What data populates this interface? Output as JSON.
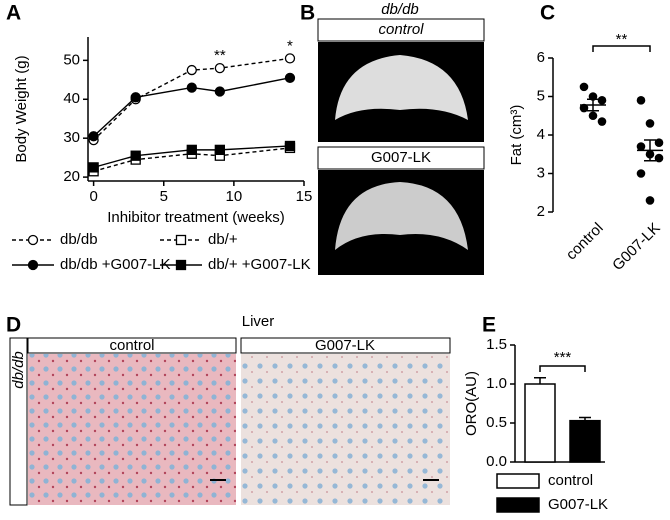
{
  "chart_data": [
    {
      "type": "line",
      "label": "A",
      "xlabel": "Inhibitor treatment (weeks)",
      "ylabel": "Body Weight (g)",
      "x": [
        0,
        3,
        7,
        9,
        14
      ],
      "xlim": [
        -0.4,
        15
      ],
      "xticks": [
        0,
        5,
        10,
        15
      ],
      "ylim": [
        19,
        56
      ],
      "yticks": [
        20,
        30,
        40,
        50
      ],
      "series": [
        {
          "name": "db/db",
          "color": "#000000",
          "dashed": true,
          "marker": "circle",
          "filled": false,
          "values": [
            29.5,
            40,
            47.5,
            48,
            50.5
          ]
        },
        {
          "name": "db/+",
          "color": "#000000",
          "dashed": true,
          "marker": "square",
          "filled": false,
          "values": [
            21.5,
            24.5,
            26,
            25.5,
            27.5
          ]
        },
        {
          "name": "db/db +G007-LK",
          "color": "#000000",
          "dashed": false,
          "marker": "circle",
          "filled": true,
          "values": [
            30.5,
            40.5,
            43,
            42,
            45.5
          ]
        },
        {
          "name": "db/+ +G007-LK",
          "color": "#000000",
          "dashed": false,
          "marker": "square",
          "filled": true,
          "values": [
            22.5,
            25.5,
            27,
            27,
            28
          ]
        }
      ],
      "annotations": [
        {
          "text": "**",
          "x": 9
        },
        {
          "text": "*",
          "x": 14
        }
      ]
    },
    {
      "type": "dotplot",
      "label": "C",
      "ylabel": "Fat (cm³)",
      "categories": [
        "control",
        "G007-LK"
      ],
      "values": [
        [
          5.25,
          5.0,
          4.9,
          4.7,
          4.5,
          4.35
        ],
        [
          4.9,
          4.3,
          3.8,
          3.7,
          3.5,
          3.4,
          3.0,
          2.3
        ]
      ],
      "mean": [
        4.78,
        3.6
      ],
      "sem": [
        0.15,
        0.27
      ],
      "ylim": [
        2,
        6
      ],
      "yticks": [
        2,
        3,
        4,
        5,
        6
      ],
      "significance": "**"
    },
    {
      "type": "bar",
      "label": "E",
      "ylabel": "ORO(AU)",
      "categories": [
        "control",
        "G007-LK"
      ],
      "values": [
        1.0,
        0.53
      ],
      "errors": [
        0.08,
        0.04
      ],
      "colors": [
        "#ffffff",
        "#000000"
      ],
      "ylim": [
        0,
        1.5
      ],
      "yticks": [
        {
          "value": 0,
          "label": "0.0"
        },
        {
          "value": 0.5,
          "label": "0.5"
        },
        {
          "value": 1,
          "label": "1.0"
        },
        {
          "value": 1.5,
          "label": "1.5"
        }
      ],
      "significance": "***"
    }
  ],
  "image_panels": [
    {
      "label": "B",
      "title": "db/db",
      "captions": [
        "control",
        "G007-LK"
      ]
    },
    {
      "label": "D",
      "title": "Liver",
      "row_label": "db/db",
      "captions": [
        "control",
        "G007-LK"
      ]
    }
  ]
}
